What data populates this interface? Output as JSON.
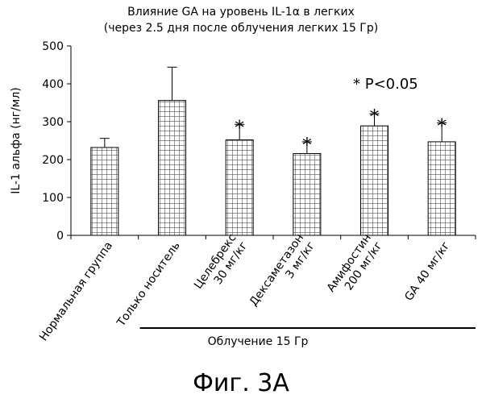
{
  "chart_data": {
    "type": "bar",
    "title": "Влияние GA на уровень IL-1α в легких",
    "subtitle": "(через 2.5 дня после облучения легких 15 Гр)",
    "ylabel": "IL-1 альфа (нг/мл)",
    "xlabel": "",
    "ylim": [
      0,
      500
    ],
    "yticks": [
      0,
      100,
      200,
      300,
      400,
      500
    ],
    "categories": [
      [
        "Нормальная группа"
      ],
      [
        "Только носитель"
      ],
      [
        "Целебрекс",
        "30 мг/кг"
      ],
      [
        "Дексаметазон",
        "3 мг/кг"
      ],
      [
        "Амифостин",
        "200 мг/кг"
      ],
      [
        "GA 40 мг/кг"
      ]
    ],
    "values": [
      232,
      356,
      252,
      216,
      289,
      247
    ],
    "error_upper": [
      256,
      444,
      293,
      247,
      321,
      297
    ],
    "significant": [
      false,
      false,
      true,
      true,
      true,
      true
    ],
    "significance_marker": "*",
    "annotation": "*  P<0.05",
    "group_label": "Облучение 15 Гр",
    "bar_fill": "#ffffff",
    "bar_hatch_color": "#000000",
    "grid": false
  },
  "figure_caption": "Фиг. 3A"
}
